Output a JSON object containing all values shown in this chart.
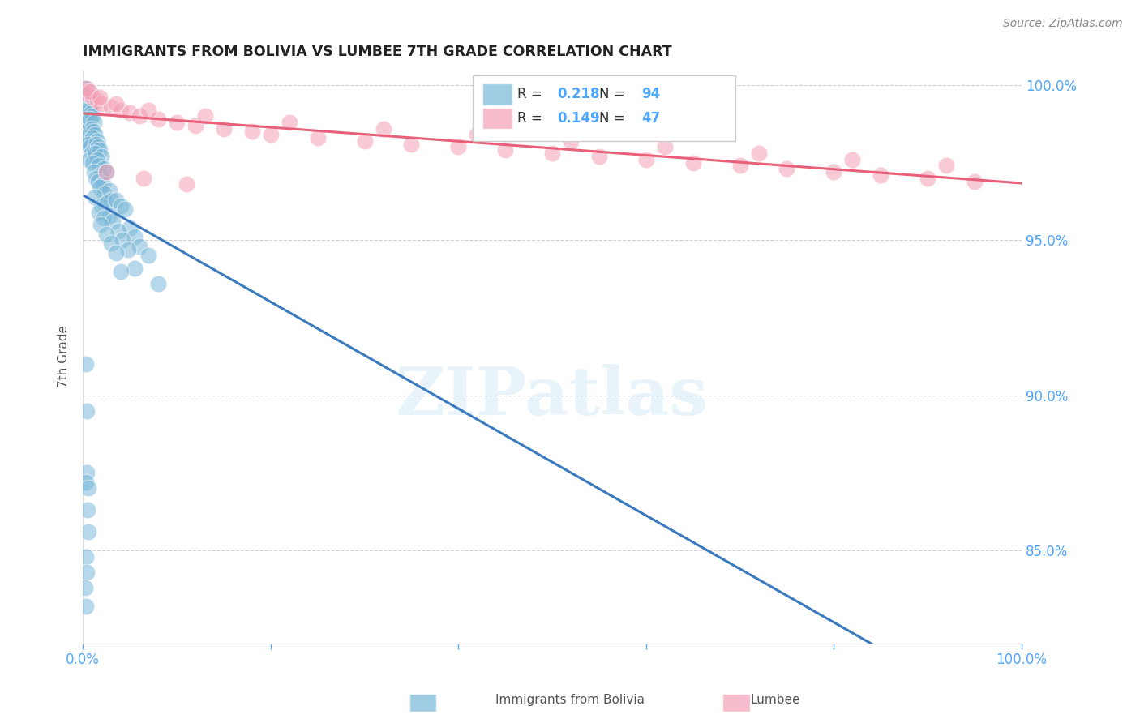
{
  "title": "IMMIGRANTS FROM BOLIVIA VS LUMBEE 7TH GRADE CORRELATION CHART",
  "source": "Source: ZipAtlas.com",
  "ylabel": "7th Grade",
  "xlim": [
    0.0,
    1.0
  ],
  "ylim": [
    0.82,
    1.005
  ],
  "yticks": [
    0.85,
    0.9,
    0.95,
    1.0
  ],
  "ytick_labels": [
    "85.0%",
    "90.0%",
    "95.0%",
    "100.0%"
  ],
  "xticks": [
    0.0,
    0.2,
    0.4,
    0.6,
    0.8,
    1.0
  ],
  "xtick_labels": [
    "0.0%",
    "",
    "",
    "",
    "",
    "100.0%"
  ],
  "legend_R1": "0.218",
  "legend_N1": "94",
  "legend_R2": "0.149",
  "legend_N2": "47",
  "blue_color": "#7ab8d9",
  "pink_color": "#f4a0b5",
  "blue_line_color": "#3a7bbf",
  "pink_line_color": "#e8607a",
  "blue_scatter_x": [
    0.002,
    0.003,
    0.004,
    0.005,
    0.003,
    0.006,
    0.002,
    0.004,
    0.005,
    0.003,
    0.006,
    0.004,
    0.007,
    0.008,
    0.005,
    0.003,
    0.002,
    0.006,
    0.009,
    0.004,
    0.01,
    0.007,
    0.005,
    0.003,
    0.008,
    0.012,
    0.006,
    0.009,
    0.011,
    0.004,
    0.013,
    0.007,
    0.01,
    0.015,
    0.006,
    0.008,
    0.014,
    0.012,
    0.009,
    0.016,
    0.011,
    0.018,
    0.007,
    0.013,
    0.02,
    0.015,
    0.01,
    0.017,
    0.022,
    0.012,
    0.019,
    0.014,
    0.025,
    0.016,
    0.021,
    0.018,
    0.028,
    0.023,
    0.013,
    0.03,
    0.02,
    0.026,
    0.035,
    0.017,
    0.04,
    0.028,
    0.022,
    0.045,
    0.032,
    0.019,
    0.05,
    0.038,
    0.025,
    0.055,
    0.042,
    0.03,
    0.06,
    0.048,
    0.035,
    0.07,
    0.055,
    0.04,
    0.08,
    0.003,
    0.004,
    0.004,
    0.003,
    0.006,
    0.005,
    0.006,
    0.003,
    0.004,
    0.002,
    0.003
  ],
  "blue_scatter_y": [
    0.999,
    0.998,
    0.999,
    0.998,
    0.997,
    0.998,
    0.996,
    0.997,
    0.995,
    0.994,
    0.993,
    0.992,
    0.994,
    0.993,
    0.991,
    0.99,
    0.989,
    0.992,
    0.991,
    0.988,
    0.99,
    0.987,
    0.986,
    0.985,
    0.989,
    0.988,
    0.984,
    0.986,
    0.985,
    0.983,
    0.984,
    0.982,
    0.983,
    0.982,
    0.981,
    0.98,
    0.981,
    0.979,
    0.978,
    0.98,
    0.977,
    0.979,
    0.976,
    0.978,
    0.977,
    0.976,
    0.975,
    0.974,
    0.973,
    0.972,
    0.971,
    0.97,
    0.972,
    0.969,
    0.968,
    0.967,
    0.966,
    0.965,
    0.964,
    0.963,
    0.961,
    0.962,
    0.963,
    0.959,
    0.961,
    0.958,
    0.957,
    0.96,
    0.956,
    0.955,
    0.954,
    0.953,
    0.952,
    0.951,
    0.95,
    0.949,
    0.948,
    0.947,
    0.946,
    0.945,
    0.941,
    0.94,
    0.936,
    0.91,
    0.895,
    0.875,
    0.872,
    0.87,
    0.863,
    0.856,
    0.848,
    0.843,
    0.838,
    0.832
  ],
  "pink_scatter_x": [
    0.002,
    0.005,
    0.01,
    0.015,
    0.02,
    0.03,
    0.04,
    0.05,
    0.06,
    0.08,
    0.1,
    0.12,
    0.15,
    0.18,
    0.2,
    0.25,
    0.3,
    0.35,
    0.4,
    0.45,
    0.5,
    0.55,
    0.6,
    0.65,
    0.7,
    0.75,
    0.8,
    0.85,
    0.9,
    0.95,
    0.003,
    0.008,
    0.018,
    0.035,
    0.07,
    0.13,
    0.22,
    0.32,
    0.42,
    0.52,
    0.62,
    0.72,
    0.82,
    0.92,
    0.025,
    0.065,
    0.11
  ],
  "pink_scatter_y": [
    0.998,
    0.997,
    0.996,
    0.995,
    0.994,
    0.993,
    0.992,
    0.991,
    0.99,
    0.989,
    0.988,
    0.987,
    0.986,
    0.985,
    0.984,
    0.983,
    0.982,
    0.981,
    0.98,
    0.979,
    0.978,
    0.977,
    0.976,
    0.975,
    0.974,
    0.973,
    0.972,
    0.971,
    0.97,
    0.969,
    0.999,
    0.998,
    0.996,
    0.994,
    0.992,
    0.99,
    0.988,
    0.986,
    0.984,
    0.982,
    0.98,
    0.978,
    0.976,
    0.974,
    0.972,
    0.97,
    0.968
  ],
  "watermark_text": "ZIPatlas",
  "background_color": "#ffffff",
  "grid_color": "#cccccc",
  "title_color": "#222222",
  "axis_label_color": "#555555",
  "tick_color": "#4da6ff",
  "legend_text_color": "#333333",
  "source_color": "#888888"
}
